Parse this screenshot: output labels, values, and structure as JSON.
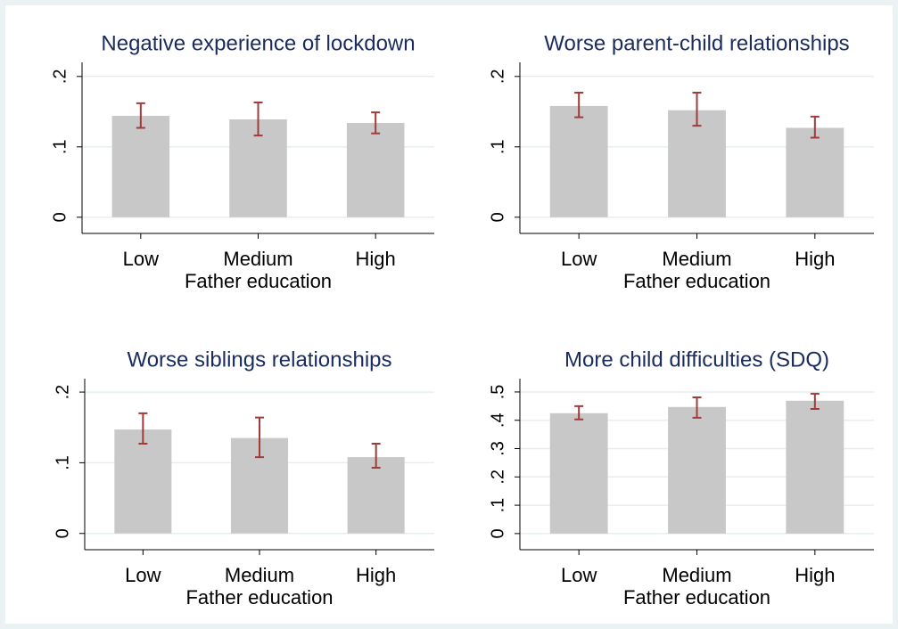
{
  "chart_data": [
    {
      "type": "bar",
      "title": "Negative experience of lockdown",
      "xlabel": "Father education",
      "categories": [
        "Low",
        "Medium",
        "High"
      ],
      "values": [
        0.144,
        0.139,
        0.134
      ],
      "ci_low": [
        0.127,
        0.116,
        0.119
      ],
      "ci_high": [
        0.162,
        0.163,
        0.149
      ],
      "ylim": [
        -0.023,
        0.22
      ],
      "yticks": [
        0,
        {
          "value": 0.1,
          "label": ".1"
        },
        {
          "value": 0.2,
          "label": ".2"
        }
      ],
      "color": "#c8c8c8",
      "error_color": "#a33a3a",
      "grid": true
    },
    {
      "type": "bar",
      "title": "Worse parent-child relationships",
      "xlabel": "Father education",
      "categories": [
        "Low",
        "Medium",
        "High"
      ],
      "values": [
        0.158,
        0.152,
        0.127
      ],
      "ci_low": [
        0.142,
        0.13,
        0.113
      ],
      "ci_high": [
        0.177,
        0.177,
        0.143
      ],
      "ylim": [
        -0.023,
        0.22
      ],
      "yticks": [
        0,
        {
          "value": 0.1,
          "label": ".1"
        },
        {
          "value": 0.2,
          "label": ".2"
        }
      ],
      "color": "#c8c8c8",
      "error_color": "#a33a3a",
      "grid": true
    },
    {
      "type": "bar",
      "title": "Worse siblings relationships",
      "xlabel": "Father education",
      "categories": [
        "Low",
        "Medium",
        "High"
      ],
      "values": [
        0.147,
        0.135,
        0.108
      ],
      "ci_low": [
        0.127,
        0.108,
        0.093
      ],
      "ci_high": [
        0.17,
        0.164,
        0.127
      ],
      "ylim": [
        -0.023,
        0.219
      ],
      "yticks": [
        0,
        {
          "value": 0.1,
          "label": ".1"
        },
        {
          "value": 0.2,
          "label": ".2"
        }
      ],
      "color": "#c8c8c8",
      "error_color": "#a33a3a",
      "grid": true
    },
    {
      "type": "bar",
      "title": "More child difficulties (SDQ)",
      "xlabel": "Father education",
      "categories": [
        "Low",
        "Medium",
        "High"
      ],
      "values": [
        0.425,
        0.447,
        0.469
      ],
      "ci_low": [
        0.403,
        0.409,
        0.44
      ],
      "ci_high": [
        0.45,
        0.481,
        0.494
      ],
      "ylim": [
        -0.057,
        0.547
      ],
      "yticks": [
        0,
        {
          "value": 0.1,
          "label": ".1"
        },
        {
          "value": 0.2,
          "label": ".2"
        },
        {
          "value": 0.3,
          "label": ".3"
        },
        {
          "value": 0.4,
          "label": ".4"
        },
        {
          "value": 0.5,
          "label": ".5"
        }
      ],
      "color": "#c8c8c8",
      "error_color": "#a33a3a",
      "grid": true
    }
  ]
}
